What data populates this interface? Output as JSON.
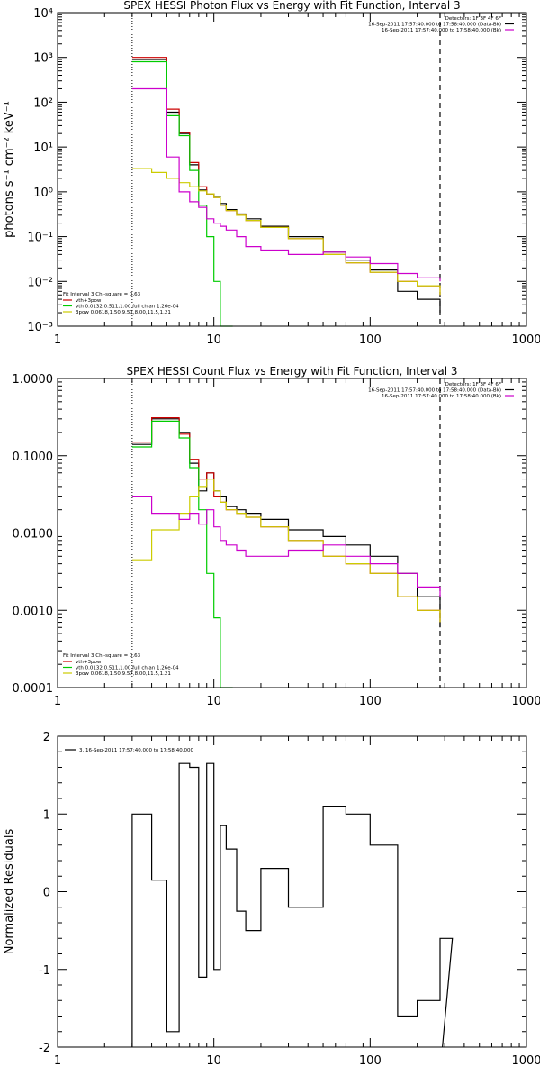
{
  "colors": {
    "data": "#000000",
    "total": "#cc0000",
    "thermal": "#00cc00",
    "powerlaw": "#cccc00",
    "background": "#cc00cc",
    "axis": "#000000"
  },
  "chart_data": [
    {
      "type": "line",
      "title": "SPEX HESSI Photon Flux vs Energy with Fit Function, Interval 3",
      "xlabel": "",
      "ylabel": "photons s⁻¹ cm⁻² keV⁻¹",
      "xscale": "log",
      "yscale": "log",
      "xlim": [
        1,
        1000
      ],
      "ylim": [
        0.001,
        10000
      ],
      "x_ticks": [
        "1",
        "10",
        "100",
        "1000"
      ],
      "y_ticks": [
        "10⁻³",
        "10⁻²",
        "10⁻¹",
        "10⁰",
        "10¹",
        "10²",
        "10³",
        "10⁴"
      ],
      "info_lines": [
        "Detectors: 1F 3F 4F 6F",
        "16-Sep-2011 17:57:40.000 to 17:58:40.000 (Data-Bk)",
        "16-Sep-2011 17:57:40.000 to 17:58:40.000 (Bk)"
      ],
      "legend_header": "Fit Interval  3   Chi-square = 0.63",
      "legend": [
        "vth+3pow",
        "vth 0.0132,0.511,1.00  full chian 1.26e-04",
        "3pow 0.0618,1.50,9.57,8.00,11.5,1.21"
      ],
      "vlines": [
        3,
        280
      ],
      "series": [
        {
          "color": "black",
          "x": [
            3,
            4,
            5,
            6,
            7,
            8,
            9,
            10,
            11,
            12,
            14,
            16,
            20,
            30,
            50,
            70,
            100,
            150,
            200,
            280
          ],
          "y": [
            900,
            900,
            60,
            20,
            4,
            1.1,
            0.9,
            0.8,
            0.55,
            0.4,
            0.32,
            0.25,
            0.17,
            0.1,
            0.045,
            0.03,
            0.018,
            0.006,
            0.004,
            0.002
          ]
        },
        {
          "color": "red",
          "x": [
            3,
            4,
            5,
            6,
            7,
            8,
            9,
            10,
            11,
            12,
            14,
            16,
            20,
            30,
            50,
            70,
            100,
            150,
            200,
            280
          ],
          "y": [
            1000,
            1000,
            70,
            21,
            4.5,
            1.3,
            0.9,
            0.75,
            0.5,
            0.38,
            0.3,
            0.23,
            0.16,
            0.09,
            0.04,
            0.026,
            0.016,
            0.01,
            0.008,
            0.005
          ]
        },
        {
          "color": "green",
          "x": [
            3,
            4,
            5,
            6,
            7,
            8,
            9,
            10,
            11
          ],
          "y": [
            800,
            800,
            50,
            18,
            3,
            0.5,
            0.1,
            0.01,
            0.001
          ]
        },
        {
          "color": "yellow",
          "x": [
            3,
            4,
            5,
            6,
            7,
            8,
            9,
            10,
            11,
            12,
            14,
            16,
            20,
            30,
            50,
            70,
            100,
            150,
            200,
            280
          ],
          "y": [
            3.3,
            2.7,
            2.0,
            1.6,
            1.3,
            1.05,
            0.9,
            0.75,
            0.5,
            0.38,
            0.3,
            0.23,
            0.16,
            0.09,
            0.04,
            0.026,
            0.016,
            0.01,
            0.008,
            0.005
          ]
        },
        {
          "color": "magenta",
          "x": [
            3,
            4,
            5,
            6,
            7,
            8,
            9,
            10,
            11,
            12,
            14,
            16,
            20,
            30,
            50,
            70,
            100,
            150,
            200,
            280
          ],
          "y": [
            200,
            200,
            6,
            1.0,
            0.6,
            0.45,
            0.25,
            0.2,
            0.17,
            0.14,
            0.1,
            0.06,
            0.05,
            0.04,
            0.045,
            0.035,
            0.025,
            0.015,
            0.012,
            0.01
          ]
        }
      ]
    },
    {
      "type": "line",
      "title": "SPEX HESSI Count Flux vs Energy with Fit Function, Interval 3",
      "xlabel": "",
      "ylabel": "",
      "xscale": "log",
      "yscale": "log",
      "xlim": [
        1,
        1000
      ],
      "ylim": [
        0.0001,
        1
      ],
      "x_ticks": [
        "1",
        "10",
        "100",
        "1000"
      ],
      "y_ticks": [
        "0.0001",
        "0.0010",
        "0.0100",
        "0.1000",
        "1.0000"
      ],
      "info_lines": [
        "Detectors: 1F 3F 4F 6F",
        "16-Sep-2011 17:57:40.000 to 17:58:40.000 (Data-Bk)",
        "16-Sep-2011 17:57:40.000 to 17:58:40.000 (Bk)"
      ],
      "legend_header": "Fit Interval  3   Chi-square = 0.63",
      "legend": [
        "vth+3pow",
        "vth 0.0132,0.511,1.00  full chian 1.26e-04",
        "3pow 0.0618,1.50,9.57,8.00,11.5,1.21"
      ],
      "vlines": [
        3,
        280
      ],
      "series": [
        {
          "color": "black",
          "x": [
            3,
            4,
            5,
            6,
            7,
            8,
            9,
            10,
            11,
            12,
            14,
            16,
            20,
            30,
            50,
            70,
            100,
            150,
            200,
            280
          ],
          "y": [
            0.14,
            0.3,
            0.3,
            0.2,
            0.08,
            0.035,
            0.06,
            0.035,
            0.03,
            0.022,
            0.02,
            0.018,
            0.015,
            0.011,
            0.009,
            0.007,
            0.005,
            0.003,
            0.0015,
            0.0006
          ]
        },
        {
          "color": "red",
          "x": [
            3,
            4,
            5,
            6,
            7,
            8,
            9,
            10,
            11,
            12,
            14,
            16,
            20,
            30,
            50,
            70,
            100,
            150,
            200,
            280
          ],
          "y": [
            0.15,
            0.31,
            0.31,
            0.19,
            0.09,
            0.05,
            0.06,
            0.03,
            0.025,
            0.02,
            0.018,
            0.016,
            0.012,
            0.008,
            0.005,
            0.004,
            0.003,
            0.0015,
            0.001,
            0.0007
          ]
        },
        {
          "color": "green",
          "x": [
            3,
            4,
            5,
            6,
            7,
            8,
            9,
            10,
            11
          ],
          "y": [
            0.13,
            0.28,
            0.28,
            0.17,
            0.07,
            0.02,
            0.003,
            0.0008,
            0.0001
          ]
        },
        {
          "color": "yellow",
          "x": [
            3,
            4,
            5,
            6,
            7,
            8,
            9,
            10,
            11,
            12,
            14,
            16,
            20,
            30,
            50,
            70,
            100,
            150,
            200,
            280
          ],
          "y": [
            0.0045,
            0.011,
            0.011,
            0.018,
            0.03,
            0.04,
            0.05,
            0.035,
            0.025,
            0.02,
            0.018,
            0.016,
            0.012,
            0.008,
            0.005,
            0.004,
            0.003,
            0.0015,
            0.001,
            0.0007
          ]
        },
        {
          "color": "magenta",
          "x": [
            3,
            4,
            5,
            6,
            7,
            8,
            9,
            10,
            11,
            12,
            14,
            16,
            20,
            30,
            50,
            70,
            100,
            150,
            200,
            280
          ],
          "y": [
            0.03,
            0.018,
            0.018,
            0.015,
            0.018,
            0.013,
            0.02,
            0.012,
            0.008,
            0.007,
            0.006,
            0.005,
            0.005,
            0.006,
            0.007,
            0.005,
            0.004,
            0.003,
            0.002,
            0.0015
          ]
        }
      ]
    },
    {
      "type": "line",
      "title": "",
      "xlabel": "",
      "ylabel": "Normalized Residuals",
      "xscale": "log",
      "yscale": "linear",
      "xlim": [
        1,
        1000
      ],
      "ylim": [
        -2,
        2
      ],
      "x_ticks": [
        "1",
        "10",
        "100",
        "1000"
      ],
      "y_ticks": [
        "-2",
        "-1",
        "0",
        "1",
        "2"
      ],
      "legend": [
        "3, 16-Sep-2011 17:57:40.000 to 17:58:40.000"
      ],
      "series": [
        {
          "color": "black",
          "x": [
            3,
            4,
            5,
            6,
            7,
            8,
            9,
            10,
            11,
            12,
            14,
            16,
            20,
            30,
            50,
            70,
            100,
            150,
            200,
            280
          ],
          "y": [
            1.0,
            0.15,
            -1.8,
            1.65,
            1.6,
            -1.1,
            1.65,
            -1.0,
            0.85,
            0.55,
            -0.25,
            -0.5,
            0.3,
            -0.2,
            1.1,
            1.0,
            0.6,
            -1.6,
            -1.4,
            -0.6
          ]
        }
      ]
    }
  ]
}
